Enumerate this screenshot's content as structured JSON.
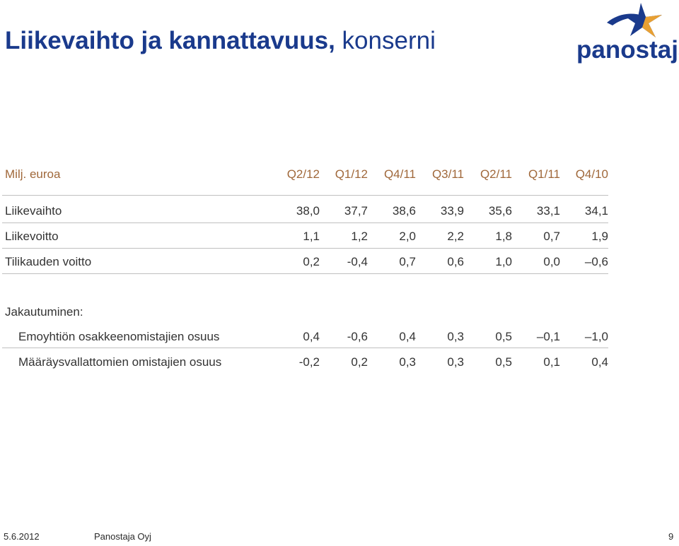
{
  "title": {
    "bold": "Liikevaihto ja kannattavuus,",
    "light": "konserni"
  },
  "logo": {
    "text": "panostaja",
    "text_color": "#1a3a8c",
    "star_color": "#e8a033"
  },
  "table": {
    "unit_label": "Milj. euroa",
    "columns": [
      "Q2/12",
      "Q1/12",
      "Q4/11",
      "Q3/11",
      "Q2/11",
      "Q1/11",
      "Q4/10"
    ],
    "rows": [
      {
        "label": "Liikevaihto",
        "values": [
          "38,0",
          "37,7",
          "38,6",
          "33,9",
          "35,6",
          "33,1",
          "34,1"
        ]
      },
      {
        "label": "Liikevoitto",
        "values": [
          "1,1",
          "1,2",
          "2,0",
          "2,2",
          "1,8",
          "0,7",
          "1,9"
        ]
      },
      {
        "label": "Tilikauden voitto",
        "values": [
          "0,2",
          "-0,4",
          "0,7",
          "0,6",
          "1,0",
          "0,0",
          "–0,6"
        ]
      }
    ],
    "breakdown_label": "Jakautuminen:",
    "breakdown_rows": [
      {
        "label": "Emoyhtiön osakkeenomistajien osuus",
        "values": [
          "0,4",
          "-0,6",
          "0,4",
          "0,3",
          "0,5",
          "–0,1",
          "–1,0"
        ]
      },
      {
        "label": "Määräysvallattomien omistajien osuus",
        "values": [
          "-0,2",
          "0,2",
          "0,3",
          "0,3",
          "0,5",
          "0,1",
          "0,4"
        ]
      }
    ]
  },
  "footer": {
    "date": "5.6.2012",
    "company": "Panostaja Oyj",
    "page": "9"
  },
  "colors": {
    "title": "#1a3a8c",
    "header": "#a0683a",
    "text": "#333333",
    "rule": "#bfbfbf"
  }
}
